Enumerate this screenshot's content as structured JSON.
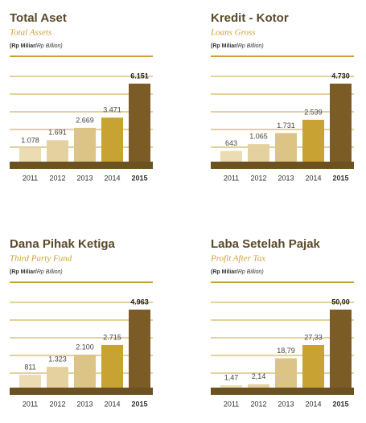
{
  "chart_data": [
    {
      "type": "bar",
      "title": "Total Aset",
      "subtitle": "Total Assets",
      "unit_id": "(Rp Miliar/",
      "unit_en": "Rp Billion)",
      "categories": [
        "2011",
        "2012",
        "2013",
        "2014",
        "2015"
      ],
      "values": [
        1078,
        1691,
        2669,
        3471,
        6151
      ],
      "value_labels": [
        "1.078",
        "1.691",
        "2.669",
        "3.471",
        "6.151"
      ],
      "colors": [
        "#ecdcb3",
        "#e5d19f",
        "#dcc386",
        "#c9a234",
        "#7b5b26"
      ]
    },
    {
      "type": "bar",
      "title": "Kredit - Kotor",
      "subtitle": "Loans Gross",
      "unit_id": "(Rp Miliar/",
      "unit_en": "Rp Billion)",
      "categories": [
        "2011",
        "2012",
        "2013",
        "2014",
        "2015"
      ],
      "values": [
        643,
        1065,
        1731,
        2539,
        4730
      ],
      "value_labels": [
        "643",
        "1.065",
        "1.731",
        "2.539",
        "4.730"
      ],
      "colors": [
        "#ecdcb3",
        "#e5d19f",
        "#dcc386",
        "#c9a234",
        "#7b5b26"
      ]
    },
    {
      "type": "bar",
      "title": "Dana Pihak Ketiga",
      "subtitle": "Third Party Fund",
      "unit_id": "(Rp Miliar/",
      "unit_en": "Rp Billion)",
      "categories": [
        "2011",
        "2012",
        "2013",
        "2014",
        "2015"
      ],
      "values": [
        811,
        1323,
        2100,
        2715,
        4963
      ],
      "value_labels": [
        "811",
        "1.323",
        "2.100",
        "2.715",
        "4.963"
      ],
      "colors": [
        "#ecdcb3",
        "#e5d19f",
        "#dcc386",
        "#c9a234",
        "#7b5b26"
      ]
    },
    {
      "type": "bar",
      "title": "Laba Setelah Pajak",
      "subtitle": "Profit After Tax",
      "unit_id": "(Rp Miliar/",
      "unit_en": "Rp Billion)",
      "categories": [
        "2011",
        "2012",
        "2013",
        "2014",
        "2015"
      ],
      "values": [
        1.47,
        2.14,
        18.79,
        27.33,
        50.0
      ],
      "value_labels": [
        "1,47",
        "2,14",
        "18,79",
        "27,33",
        "50,00"
      ],
      "colors": [
        "#ecdcb3",
        "#e5d19f",
        "#dcc386",
        "#c9a234",
        "#7b5b26"
      ]
    }
  ]
}
